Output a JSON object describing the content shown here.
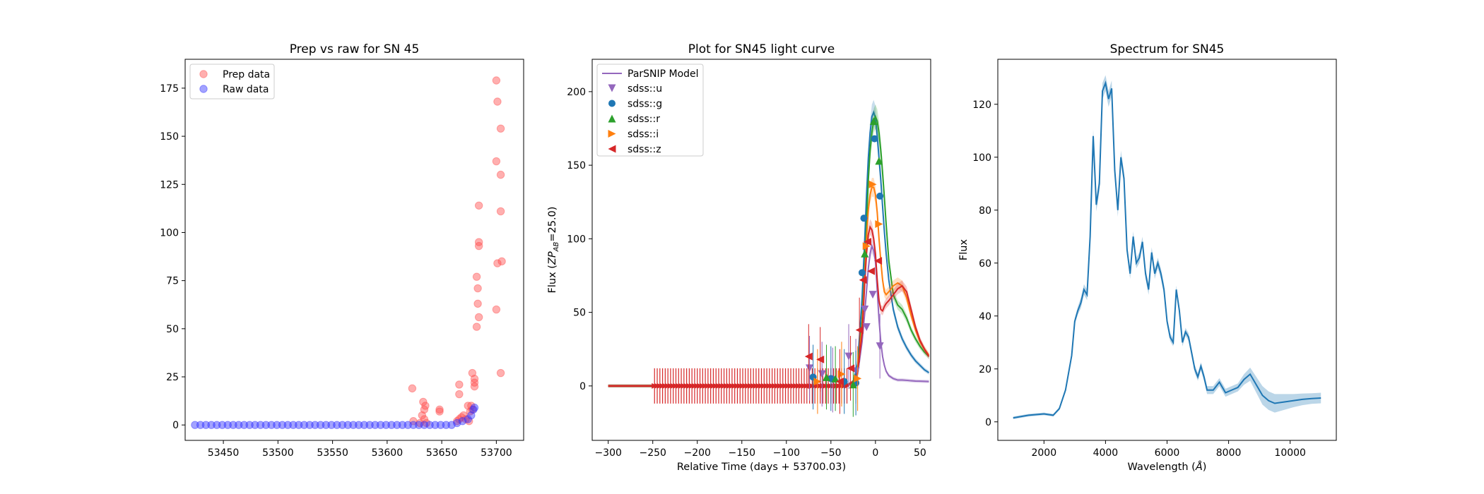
{
  "chart_data": [
    {
      "type": "scatter",
      "title": "Prep vs raw for SN 45",
      "xlabel": "",
      "ylabel": "",
      "xlim": [
        53415,
        53725
      ],
      "ylim": [
        -8,
        190
      ],
      "xticks": [
        53450,
        53500,
        53550,
        53600,
        53650,
        53700
      ],
      "yticks": [
        0,
        25,
        50,
        75,
        100,
        125,
        150,
        175
      ],
      "legend": "top-left",
      "series": [
        {
          "name": "Prep data",
          "color": "#ff4d4d",
          "points": [
            [
              53700,
              179
            ],
            [
              53701,
              168
            ],
            [
              53704,
              154
            ],
            [
              53700,
              137
            ],
            [
              53704,
              130
            ],
            [
              53704,
              111
            ],
            [
              53684,
              114
            ],
            [
              53684,
              95
            ],
            [
              53684,
              93
            ],
            [
              53682,
              77
            ],
            [
              53683,
              71
            ],
            [
              53705,
              85
            ],
            [
              53701,
              84
            ],
            [
              53683,
              63
            ],
            [
              53700,
              60
            ],
            [
              53684,
              56
            ],
            [
              53682,
              51
            ],
            [
              53704,
              27
            ],
            [
              53678,
              27
            ],
            [
              53680,
              24
            ],
            [
              53680,
              22
            ],
            [
              53680,
              20
            ],
            [
              53666,
              21
            ],
            [
              53623,
              19
            ],
            [
              53666,
              16
            ],
            [
              53633,
              12
            ],
            [
              53635,
              10
            ],
            [
              53634,
              8
            ],
            [
              53648,
              8
            ],
            [
              53648,
              7
            ],
            [
              53674,
              10
            ],
            [
              53677,
              10
            ],
            [
              53678,
              8
            ],
            [
              53676,
              7
            ],
            [
              53670,
              5
            ],
            [
              53668,
              4
            ],
            [
              53666,
              3
            ],
            [
              53664,
              2
            ],
            [
              53672,
              3
            ],
            [
              53632,
              5
            ],
            [
              53634,
              3
            ],
            [
              53636,
              1
            ],
            [
              53624,
              2
            ],
            [
              53630,
              1
            ],
            [
              53675,
              2
            ]
          ]
        },
        {
          "name": "Raw data",
          "color": "#3333ff",
          "points": [
            [
              53424,
              0
            ],
            [
              53429,
              0
            ],
            [
              53434,
              0
            ],
            [
              53439,
              0
            ],
            [
              53444,
              0
            ],
            [
              53449,
              0
            ],
            [
              53454,
              0
            ],
            [
              53459,
              0
            ],
            [
              53464,
              0
            ],
            [
              53469,
              0
            ],
            [
              53474,
              0
            ],
            [
              53479,
              0
            ],
            [
              53484,
              0
            ],
            [
              53489,
              0
            ],
            [
              53494,
              0
            ],
            [
              53499,
              0
            ],
            [
              53504,
              0
            ],
            [
              53509,
              0
            ],
            [
              53514,
              0
            ],
            [
              53519,
              0
            ],
            [
              53524,
              0
            ],
            [
              53529,
              0
            ],
            [
              53534,
              0
            ],
            [
              53539,
              0
            ],
            [
              53544,
              0
            ],
            [
              53549,
              0
            ],
            [
              53554,
              0
            ],
            [
              53559,
              0
            ],
            [
              53564,
              0
            ],
            [
              53569,
              0
            ],
            [
              53574,
              0
            ],
            [
              53579,
              0
            ],
            [
              53584,
              0
            ],
            [
              53589,
              0
            ],
            [
              53594,
              0
            ],
            [
              53599,
              0
            ],
            [
              53604,
              0
            ],
            [
              53609,
              0
            ],
            [
              53614,
              0
            ],
            [
              53619,
              0
            ],
            [
              53624,
              0
            ],
            [
              53629,
              0
            ],
            [
              53634,
              0
            ],
            [
              53639,
              0
            ],
            [
              53644,
              0
            ],
            [
              53649,
              0
            ],
            [
              53654,
              0
            ],
            [
              53659,
              0
            ],
            [
              53664,
              1
            ],
            [
              53669,
              2
            ],
            [
              53674,
              3
            ],
            [
              53677,
              5
            ],
            [
              53679,
              8
            ],
            [
              53680,
              9
            ]
          ]
        }
      ]
    },
    {
      "type": "line",
      "title": "Plot for SN45 light curve",
      "xlabel": "Relative Time (days + 53700.03)",
      "ylabel": "Flux (ZP_AB=25.0)",
      "ylabel_main": "Flux (",
      "ylabel_zp": "ZP",
      "ylabel_sub": "AB",
      "ylabel_end": "=25.0)",
      "xlim": [
        -318,
        62
      ],
      "ylim": [
        -37,
        222
      ],
      "xticks": [
        -300,
        -250,
        -200,
        -150,
        -100,
        -50,
        0,
        50
      ],
      "yticks": [
        0,
        50,
        100,
        150,
        200
      ],
      "legend": "top-left",
      "model": {
        "name": "ParSNIP Model",
        "x": [
          -300,
          -250,
          -200,
          -150,
          -100,
          -50,
          -30,
          -25,
          -20,
          -15,
          -12,
          -10,
          -8,
          -6,
          -4,
          -2,
          0,
          2,
          4,
          6,
          8,
          10,
          12,
          15,
          20,
          25,
          30,
          35,
          40,
          45,
          50,
          55,
          60
        ],
        "bands": [
          {
            "name": "sdss::u",
            "color": "#9467bd",
            "marker": "tri-down",
            "y": [
              0,
              0,
              0,
              0,
              0,
              0,
              1,
              2,
              8,
              30,
              50,
              65,
              80,
              90,
              95,
              92,
              85,
              65,
              45,
              30,
              20,
              14,
              10,
              7,
              5,
              4,
              4,
              3.8,
              3.5,
              3.3,
              3.2,
              3.1,
              3
            ]
          },
          {
            "name": "sdss::g",
            "color": "#1f77b4",
            "marker": "circle",
            "y": [
              0,
              0,
              0,
              0,
              0,
              0,
              1,
              3,
              15,
              60,
              100,
              130,
              155,
              172,
              183,
              186,
              182,
              170,
              155,
              140,
              122,
              105,
              90,
              72,
              52,
              40,
              32,
              26,
              21,
              17,
              14,
              11,
              9
            ]
          },
          {
            "name": "sdss::r",
            "color": "#2ca02c",
            "marker": "tri-up",
            "y": [
              0,
              0,
              0,
              0,
              0,
              0,
              1,
              3,
              12,
              45,
              80,
              110,
              140,
              160,
              172,
              180,
              183,
              180,
              172,
              160,
              145,
              128,
              110,
              85,
              62,
              55,
              52,
              46,
              38,
              32,
              27,
              23,
              20
            ]
          },
          {
            "name": "sdss::i",
            "color": "#ff7f0e",
            "marker": "tri-right",
            "y": [
              0,
              0,
              0,
              0,
              0,
              0,
              1,
              3,
              10,
              40,
              75,
              100,
              120,
              130,
              135,
              135,
              130,
              118,
              100,
              85,
              72,
              64,
              62,
              64,
              68,
              70,
              68,
              60,
              48,
              38,
              30,
              25,
              21
            ]
          },
          {
            "name": "sdss::z",
            "color": "#d62728",
            "marker": "tri-left",
            "y": [
              0,
              0,
              0,
              0,
              0,
              0,
              1,
              3,
              10,
              35,
              70,
              90,
              103,
              108,
              106,
              100,
              90,
              72,
              58,
              52,
              51,
              54,
              56,
              58,
              62,
              66,
              68,
              64,
              52,
              40,
              31,
              25,
              20
            ]
          }
        ]
      },
      "observations": [
        {
          "band": "sdss::u",
          "points": [
            [
              -74,
              12
            ],
            [
              -48,
              4
            ],
            [
              -30,
              20
            ],
            [
              -22,
              10
            ],
            [
              -12,
              52
            ],
            [
              -10,
              40
            ],
            [
              -3,
              62
            ],
            [
              5,
              27
            ],
            [
              -60,
              8
            ]
          ]
        },
        {
          "band": "sdss::g",
          "points": [
            [
              -70,
              6
            ],
            [
              -35,
              3
            ],
            [
              -22,
              2
            ],
            [
              -15,
              77
            ],
            [
              -13,
              114
            ],
            [
              -1,
              168
            ],
            [
              5,
              129
            ],
            [
              -50,
              5
            ]
          ]
        },
        {
          "band": "sdss::r",
          "points": [
            [
              -45,
              5
            ],
            [
              -25,
              1
            ],
            [
              -12,
              90
            ],
            [
              -2,
              180
            ],
            [
              4,
              153
            ],
            [
              -55,
              6
            ]
          ]
        },
        {
          "band": "sdss::i",
          "points": [
            [
              -38,
              8
            ],
            [
              -20,
              5
            ],
            [
              -10,
              95
            ],
            [
              -3,
              137
            ],
            [
              4,
              110
            ],
            [
              -65,
              3
            ]
          ]
        },
        {
          "band": "sdss::z",
          "points": [
            [
              -75,
              20
            ],
            [
              -62,
              18
            ],
            [
              -40,
              3
            ],
            [
              -28,
              12
            ],
            [
              -18,
              38
            ],
            [
              -14,
              72
            ],
            [
              -9,
              98
            ],
            [
              3,
              85
            ],
            [
              -5,
              78
            ]
          ]
        }
      ],
      "error_bars": {
        "x_start": -248,
        "x_end": -30,
        "step": 3,
        "half": 12
      }
    },
    {
      "type": "line",
      "title": "Spectrum for SN45",
      "xlabel": "Wavelength (Å)",
      "xlabel_text": "Wavelength (",
      "xlabel_unit": "Å",
      "xlabel_end": ")",
      "ylabel": "Flux",
      "xlim": [
        500,
        11500
      ],
      "ylim": [
        -7,
        137
      ],
      "xticks": [
        2000,
        4000,
        6000,
        8000,
        10000
      ],
      "yticks": [
        0,
        20,
        40,
        60,
        80,
        100,
        120
      ],
      "series": [
        {
          "name": "",
          "color": "#1f77b4",
          "x": [
            1000,
            1500,
            2000,
            2300,
            2500,
            2700,
            2900,
            3000,
            3100,
            3200,
            3300,
            3400,
            3500,
            3600,
            3700,
            3800,
            3900,
            4000,
            4100,
            4200,
            4300,
            4400,
            4500,
            4600,
            4700,
            4800,
            4900,
            5000,
            5100,
            5200,
            5300,
            5400,
            5500,
            5600,
            5700,
            5800,
            5900,
            6000,
            6100,
            6200,
            6300,
            6400,
            6500,
            6600,
            6700,
            6800,
            6900,
            7000,
            7100,
            7200,
            7300,
            7500,
            7700,
            7900,
            8100,
            8300,
            8500,
            8700,
            8900,
            9100,
            9300,
            9500,
            9800,
            10100,
            10400,
            10700,
            11000
          ],
          "y": [
            1.5,
            2.5,
            3,
            2.5,
            5,
            12,
            25,
            38,
            42,
            45,
            50,
            48,
            70,
            108,
            82,
            90,
            125,
            128,
            122,
            126,
            95,
            80,
            100,
            92,
            65,
            56,
            70,
            60,
            62,
            68,
            56,
            50,
            64,
            56,
            60,
            56,
            50,
            38,
            32,
            30,
            50,
            42,
            30,
            34,
            32,
            26,
            20,
            17,
            21,
            17,
            12,
            12,
            15,
            11,
            12,
            13,
            16,
            18,
            14,
            10,
            8,
            7,
            7.5,
            8,
            8.5,
            8.8,
            9
          ],
          "band_halfwidth": [
            0.5,
            0.5,
            0.5,
            0.5,
            0.6,
            0.8,
            1,
            1.2,
            1.5,
            2,
            2,
            2,
            2.5,
            2.5,
            2.5,
            3,
            3,
            3,
            3,
            3,
            2.5,
            2.5,
            2.5,
            2.5,
            2,
            2,
            2,
            2,
            2,
            2,
            2,
            2,
            2,
            2,
            2,
            2,
            2,
            1.5,
            1.5,
            1.5,
            1.5,
            1.5,
            1.5,
            1.5,
            1.5,
            1.5,
            1.5,
            1.5,
            1.5,
            1.5,
            1.5,
            1.5,
            1.5,
            1.5,
            1.5,
            1.5,
            2,
            2.5,
            3,
            3.5,
            3.5,
            3.5,
            3,
            2.5,
            2.2,
            2,
            2
          ]
        }
      ]
    }
  ]
}
